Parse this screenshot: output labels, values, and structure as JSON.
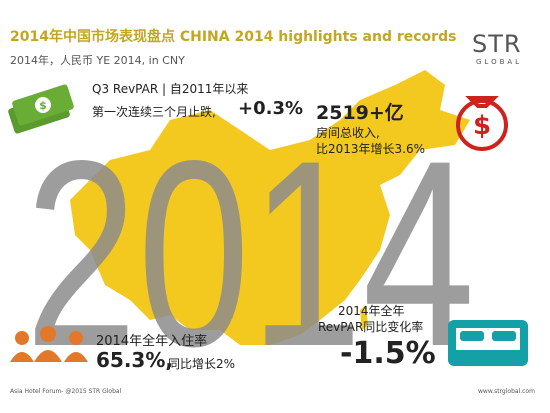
{
  "header": {
    "title": "2014年中国市场表现盘点 CHINA 2014 highlights and records",
    "subtitle": "2014年，人民币  YE 2014, in CNY"
  },
  "logo": {
    "name": "STR",
    "sub": "GLOBAL"
  },
  "background_year": "2014",
  "revpar_q3": {
    "label": "Q3 RevPAR | 自2011年以来",
    "text": "第一次连续三个月止跌,",
    "value": "+0.3%"
  },
  "room_revenue": {
    "value": "2519+亿",
    "line1": "房间总收入,",
    "line2": "比2013年增长3.6%"
  },
  "occupancy": {
    "label": "2014年全年入住率",
    "value": "65.3%,",
    "text": "同比增长2%"
  },
  "revpar_year": {
    "line1": "2014年全年",
    "line2": "RevPAR同比变化率",
    "value": "-1.5%"
  },
  "footer": {
    "left": "Asia Hotel Forum- @2015 STR Global",
    "right": "www.strglobal.com"
  }
}
